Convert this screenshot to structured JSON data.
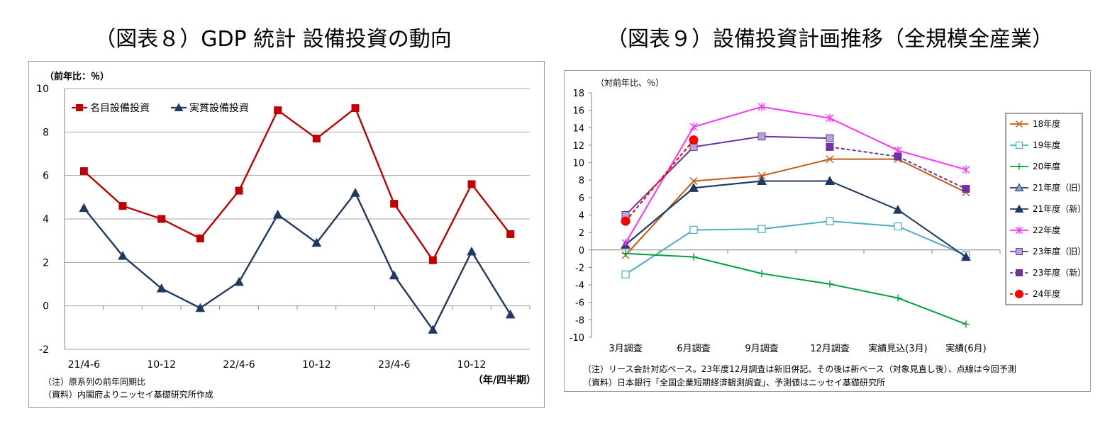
{
  "left": {
    "title": "（図表８）GDP 統計 設備投資の動向",
    "unit_label": "（前年比：％）",
    "x_axis_label": "（年/四半期）",
    "notes": [
      "（注）原系列の前年同期比",
      "（資料）内閣府よりニッセイ基礎研究所作成"
    ]
  },
  "right": {
    "title": "（図表９）設備投資計画推移（全規模全産業）",
    "unit_label": "（対前年比、％）",
    "notes": [
      "（注）リース会計対応ベース。23年度12月調査は新旧併記、その後は新ベース（対象見直し後）、点線は今回予測",
      "（資料）日本銀行「全国企業短期経済観測調査」、予測値はニッセイ基礎研究所"
    ]
  },
  "chart_data": [
    {
      "type": "line",
      "title": "（図表８）GDP 統計 設備投資の動向",
      "ylabel": "（前年比：％）",
      "xlabel": "（年/四半期）",
      "ylim": [
        -2,
        10
      ],
      "y_ticks": [
        -2,
        0,
        2,
        4,
        6,
        8,
        10
      ],
      "grid": true,
      "legend": "top-left",
      "x": [
        "21/4-6",
        "7-9",
        "10-12",
        "22/1-3",
        "22/4-6",
        "7-9",
        "10-12",
        "23/1-3",
        "23/4-6",
        "7-9",
        "10-12",
        "24/1-3"
      ],
      "x_tick_labels": [
        "21/4-6",
        "",
        "10-12",
        "",
        "22/4-6",
        "",
        "10-12",
        "",
        "23/4-6",
        "",
        "10-12",
        ""
      ],
      "series": [
        {
          "name": "名目設備投資",
          "color": "#c00000",
          "marker": "square",
          "values": [
            6.2,
            4.6,
            4.0,
            3.1,
            5.3,
            9.0,
            7.7,
            9.1,
            4.7,
            2.1,
            5.6,
            3.3
          ]
        },
        {
          "name": "実質設備投資",
          "color": "#1f3864",
          "marker": "triangle",
          "values": [
            4.5,
            2.3,
            0.8,
            -0.1,
            1.1,
            4.2,
            2.9,
            5.2,
            1.4,
            -1.1,
            2.5,
            -0.4
          ]
        }
      ]
    },
    {
      "type": "line",
      "title": "（図表９）設備投資計画推移（全規模全産業）",
      "ylabel": "（対前年比、％）",
      "ylim": [
        -10,
        18
      ],
      "y_ticks": [
        -10,
        -8,
        -6,
        -4,
        -2,
        0,
        2,
        4,
        6,
        8,
        10,
        12,
        14,
        16,
        18
      ],
      "grid": false,
      "legend": "right",
      "categories": [
        "3月調査",
        "6月調査",
        "9月調査",
        "12月調査",
        "実績見込(3月)",
        "実績(6月)"
      ],
      "series": [
        {
          "name": "18年度",
          "color": "#c55a11",
          "marker": "x",
          "values": [
            -0.6,
            7.9,
            8.5,
            10.4,
            10.4,
            6.6
          ]
        },
        {
          "name": "19年度",
          "color": "#4bacc6",
          "marker": "open-square",
          "values": [
            -2.8,
            2.3,
            2.4,
            3.3,
            2.7,
            -0.6
          ]
        },
        {
          "name": "20年度",
          "color": "#00a040",
          "marker": "plus",
          "values": [
            -0.4,
            -0.8,
            -2.7,
            -3.9,
            -5.5,
            -8.5
          ]
        },
        {
          "name": "21年度（旧）",
          "color": "#1f3864",
          "marker": "triangle",
          "fill": "#7fa7d6",
          "values": [
            0.6,
            7.1,
            7.9,
            7.9,
            null,
            null
          ]
        },
        {
          "name": "21年度（新）",
          "color": "#1f3864",
          "marker": "triangle",
          "values": [
            0.6,
            7.1,
            7.9,
            7.9,
            4.6,
            -0.8
          ]
        },
        {
          "name": "22年度",
          "color": "#ff33ff",
          "marker": "star",
          "values": [
            0.8,
            14.1,
            16.4,
            15.1,
            11.4,
            9.2
          ]
        },
        {
          "name": "23年度（旧）",
          "color": "#7030a0",
          "marker": "square",
          "fill": "#b4a7d6",
          "values": [
            4.0,
            11.8,
            13.0,
            12.8,
            null,
            null
          ]
        },
        {
          "name": "23年度（新）",
          "color": "#7030a0",
          "marker": "square",
          "dashed_from_index": 3,
          "values": [
            null,
            null,
            null,
            11.8,
            10.7,
            7.0
          ]
        },
        {
          "name": "24年度",
          "color": "#ff0000",
          "marker": "circle",
          "dashed_from_index": 0,
          "values": [
            3.3,
            12.6,
            null,
            null,
            null,
            null
          ]
        }
      ]
    }
  ]
}
